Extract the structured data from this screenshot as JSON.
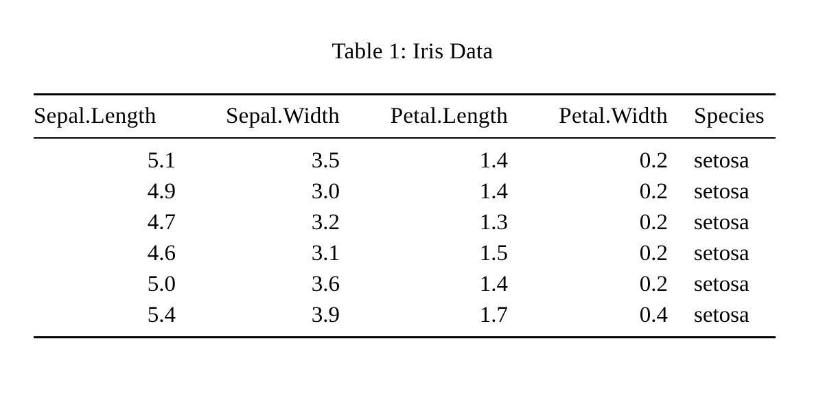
{
  "caption": "Table 1: Iris Data",
  "table": {
    "columns": [
      {
        "label": "Sepal.Length",
        "align": "right"
      },
      {
        "label": "Sepal.Width",
        "align": "right"
      },
      {
        "label": "Petal.Length",
        "align": "right"
      },
      {
        "label": "Petal.Width",
        "align": "right"
      },
      {
        "label": "Species",
        "align": "left"
      }
    ],
    "rows": [
      [
        "5.1",
        "3.5",
        "1.4",
        "0.2",
        "setosa"
      ],
      [
        "4.9",
        "3.0",
        "1.4",
        "0.2",
        "setosa"
      ],
      [
        "4.7",
        "3.2",
        "1.3",
        "0.2",
        "setosa"
      ],
      [
        "4.6",
        "3.1",
        "1.5",
        "0.2",
        "setosa"
      ],
      [
        "5.0",
        "3.6",
        "1.4",
        "0.2",
        "setosa"
      ],
      [
        "5.4",
        "3.9",
        "1.7",
        "0.4",
        "setosa"
      ]
    ]
  },
  "colors": {
    "text": "#000000",
    "background": "#ffffff",
    "rule": "#000000"
  }
}
